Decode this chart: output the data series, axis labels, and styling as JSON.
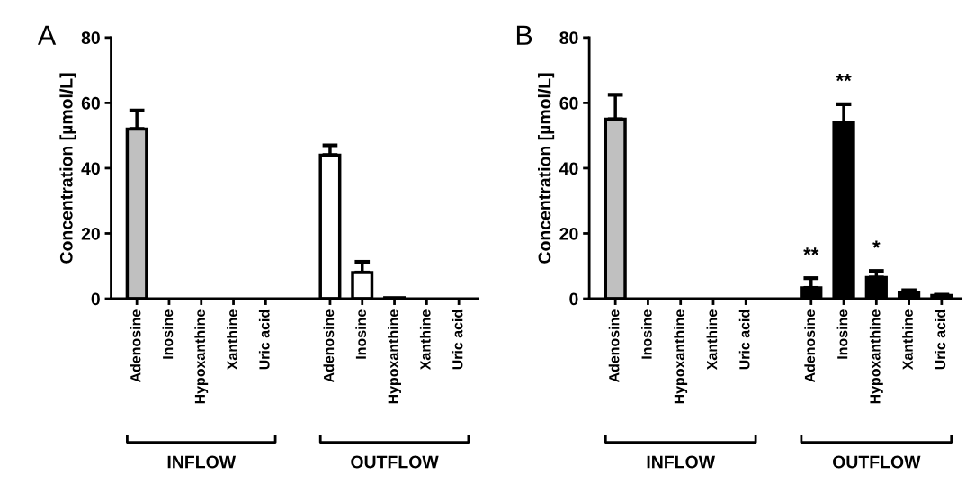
{
  "chart_data": [
    {
      "type": "bar",
      "title": "A",
      "ylabel": "Concentration [µmol/L]",
      "categories": [
        "Adenosine",
        "Inosine",
        "Hypoxanthine",
        "Xanthine",
        "Uric acid",
        null,
        "Adenosine",
        "Inosine",
        "Hypoxanthine",
        "Xanthine",
        "Uric acid"
      ],
      "values": [
        52,
        0,
        0,
        0,
        0,
        null,
        44,
        8,
        0.3,
        0,
        0
      ],
      "errors": [
        5.7,
        null,
        null,
        null,
        null,
        null,
        3,
        3.3,
        null,
        null,
        null
      ],
      "colors": [
        "#c0c0c0",
        "#ffffff",
        "#ffffff",
        "#ffffff",
        "#ffffff",
        null,
        "#ffffff",
        "#ffffff",
        "#ffffff",
        "#ffffff",
        "#ffffff"
      ],
      "ylim": [
        0,
        80
      ],
      "yticks": [
        0,
        20,
        40,
        60,
        80
      ],
      "annotations": [
        "INFLOW",
        "OUTFLOW"
      ]
    },
    {
      "type": "bar",
      "title": "B",
      "ylabel": "Concentration [µmol/L]",
      "categories": [
        "Adenosine",
        "Inosine",
        "Hypoxanthine",
        "Xanthine",
        "Uric acid",
        null,
        "Adenosine",
        "Inosine",
        "Hypoxanthine",
        "Xanthine",
        "Uric acid"
      ],
      "values": [
        55,
        0,
        0,
        0,
        0,
        null,
        3.3,
        54,
        6.5,
        2,
        1
      ],
      "errors": [
        7.5,
        null,
        null,
        null,
        null,
        null,
        3,
        5.6,
        2,
        0.6,
        0.2
      ],
      "colors": [
        "#c0c0c0",
        "#000000",
        "#000000",
        "#000000",
        "#000000",
        null,
        "#000000",
        "#000000",
        "#000000",
        "#000000",
        "#000000"
      ],
      "ylim": [
        0,
        80
      ],
      "yticks": [
        0,
        20,
        40,
        60,
        80
      ],
      "value_labels": [
        null,
        null,
        null,
        null,
        null,
        null,
        "**",
        "**",
        "*",
        null,
        null
      ],
      "annotations": [
        "INFLOW",
        "OUTFLOW"
      ]
    }
  ]
}
